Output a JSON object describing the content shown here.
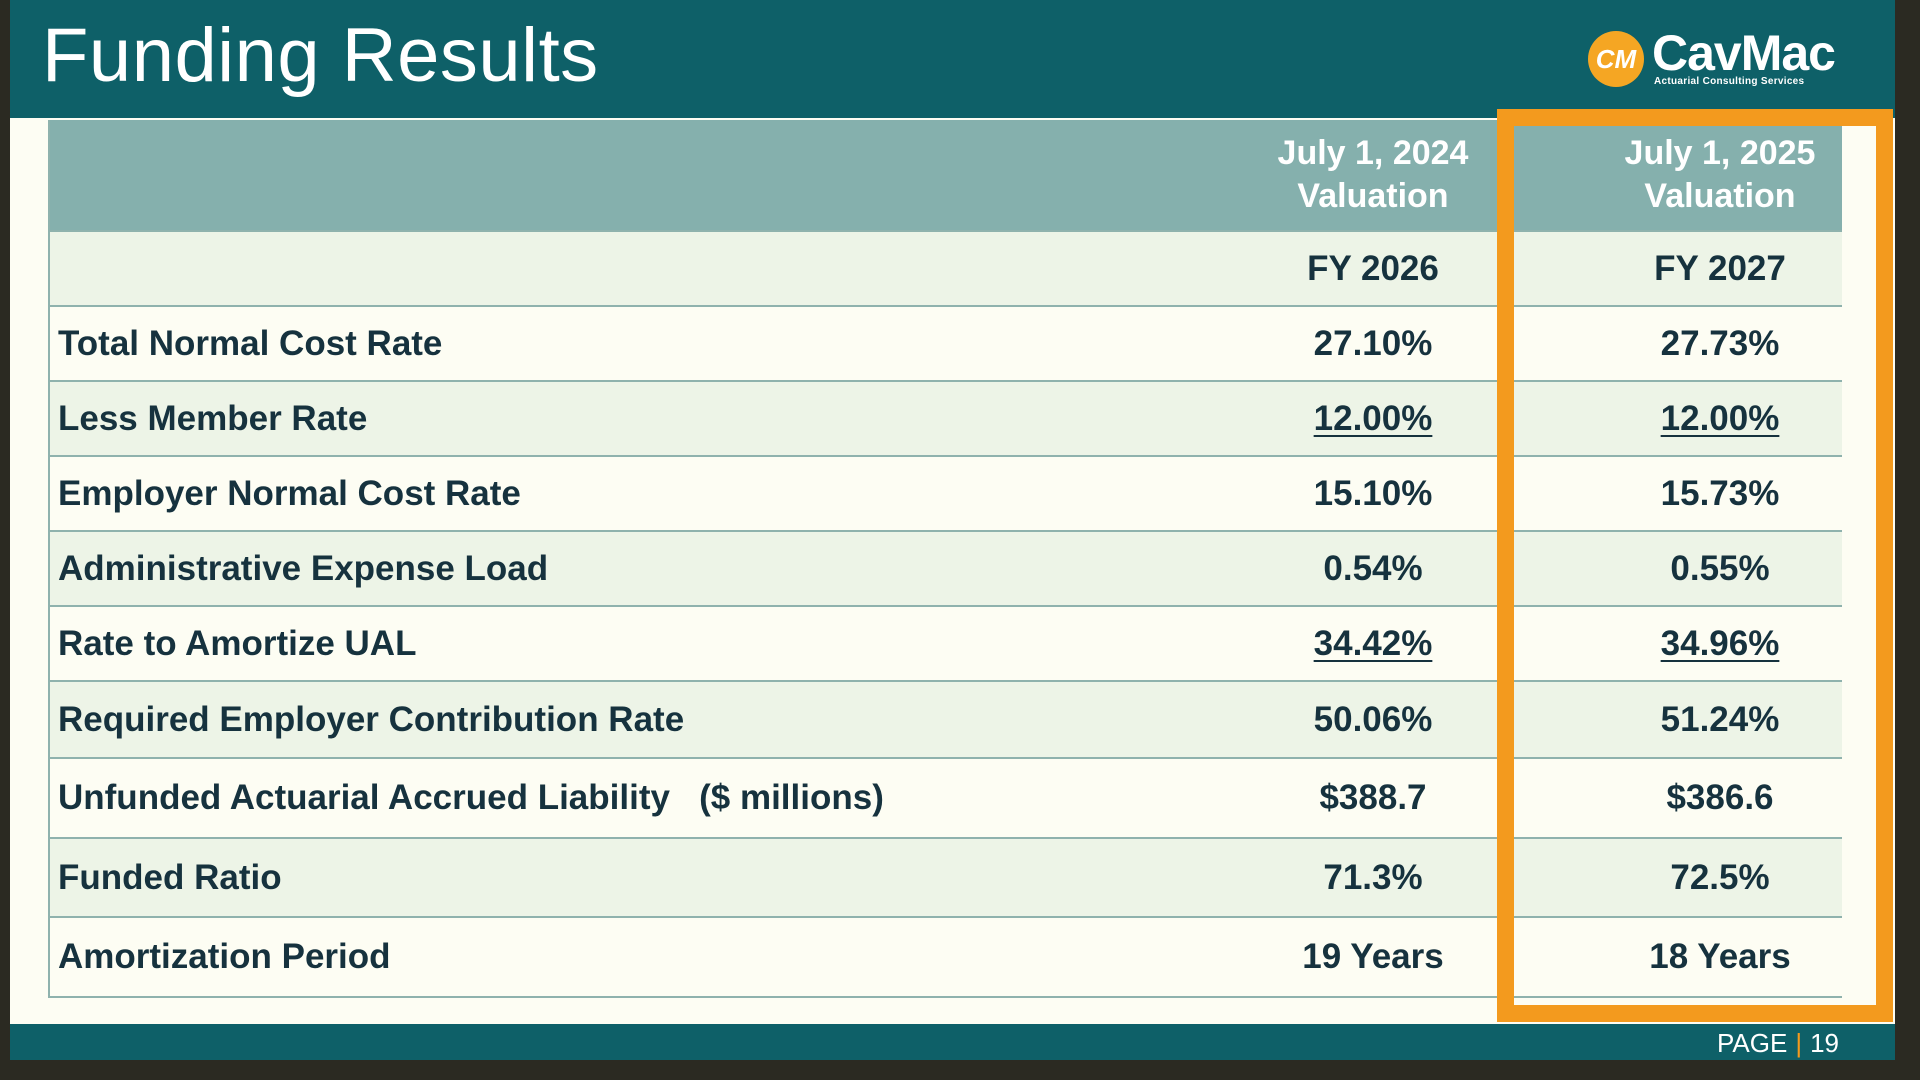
{
  "slide": {
    "title": "Funding Results",
    "logo": {
      "mark": "CM",
      "name": "CavMac",
      "tagline": "Actuarial Consulting Services"
    },
    "footer": {
      "page_label": "PAGE",
      "page_number": "19"
    }
  },
  "table": {
    "header": {
      "col1_line1": "July 1, 2024",
      "col1_line2": "Valuation",
      "col2_line1": "July 1, 2025",
      "col2_line2": "Valuation"
    },
    "subheader": {
      "col1": "FY 2026",
      "col2": "FY 2027"
    },
    "rows": [
      {
        "label": "Total Normal Cost Rate",
        "col1": "27.10%",
        "col2": "27.73%"
      },
      {
        "label": "Less Member Rate",
        "col1": "12.00%",
        "col2": "12.00%"
      },
      {
        "label": "Employer Normal Cost Rate",
        "col1": "15.10%",
        "col2": "15.73%"
      },
      {
        "label": "Administrative Expense Load",
        "col1": "0.54%",
        "col2": "0.55%"
      },
      {
        "label": "Rate to Amortize UAL",
        "col1": "34.42%",
        "col2": "34.96%"
      },
      {
        "label": "Required Employer Contribution Rate",
        "col1": "50.06%",
        "col2": "51.24%"
      },
      {
        "label": "Unfunded Actuarial Accrued Liability   ($ millions)",
        "col1": "$388.7",
        "col2": "$386.6"
      },
      {
        "label": "Funded Ratio",
        "col1": "71.3%",
        "col2": "72.5%"
      },
      {
        "label": "Amortization Period",
        "col1": "19 Years",
        "col2": "18 Years"
      }
    ]
  },
  "colors": {
    "header_teal": "#0e6068",
    "table_header": "#85b0ad",
    "highlight_orange": "#f39a1e"
  }
}
